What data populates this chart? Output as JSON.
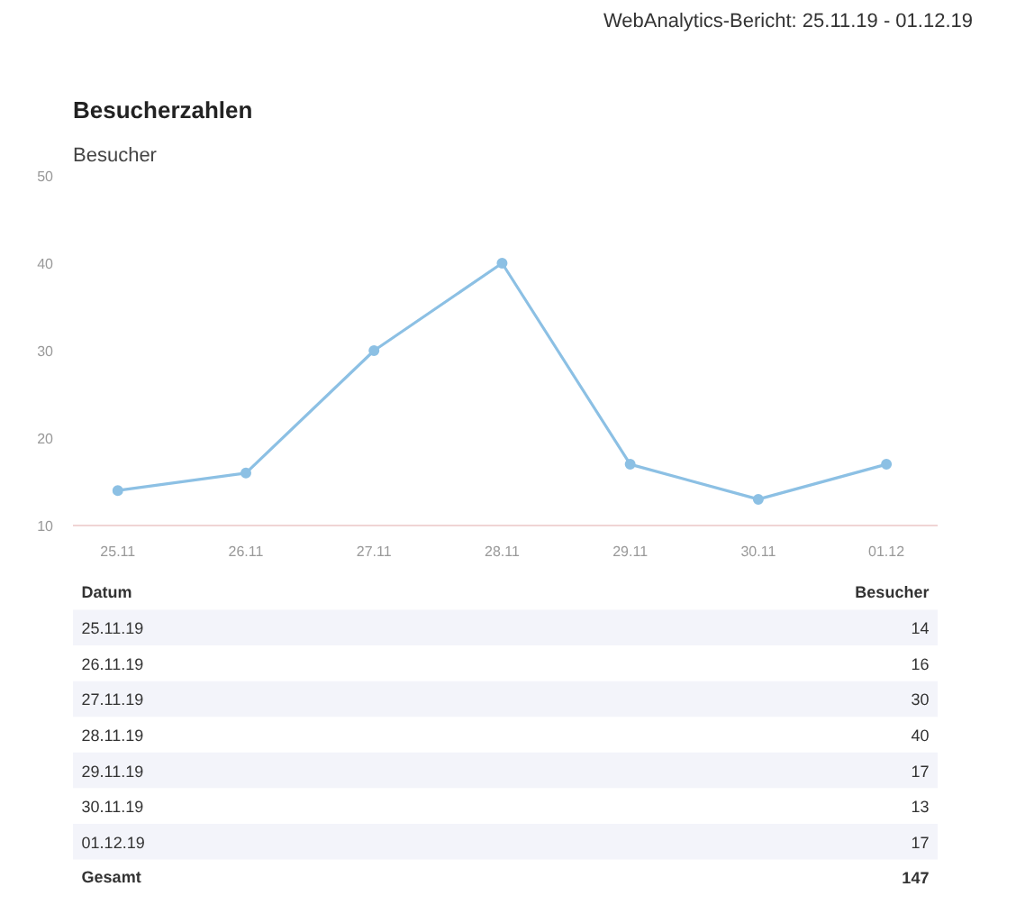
{
  "chart_data": {
    "type": "line",
    "title": "Besucherzahlen",
    "subtitle": "WebAnalytics-Bericht: 25.11.19 - 01.12.19",
    "ylabel": "Besucher",
    "categories": [
      "25.11",
      "26.11",
      "27.11",
      "28.11",
      "29.11",
      "30.11",
      "01.12"
    ],
    "series": [
      {
        "color": "#8cc0e4",
        "values": [
          14,
          16,
          30,
          40,
          17,
          13,
          17
        ]
      }
    ],
    "ylim": [
      10,
      50
    ],
    "yticks": [
      10,
      20,
      30,
      40,
      50
    ],
    "marker": "circle",
    "line_style": "solid",
    "grid": false,
    "annotations": [
      "Datum",
      "Besucher",
      "25.11.19",
      "14",
      "26.11.19",
      "16",
      "27.11.19",
      "30",
      "28.11.19",
      "40",
      "29.11.19",
      "17",
      "30.11.19",
      "13",
      "01.12.19",
      "17",
      "Gesamt",
      "147"
    ]
  }
}
